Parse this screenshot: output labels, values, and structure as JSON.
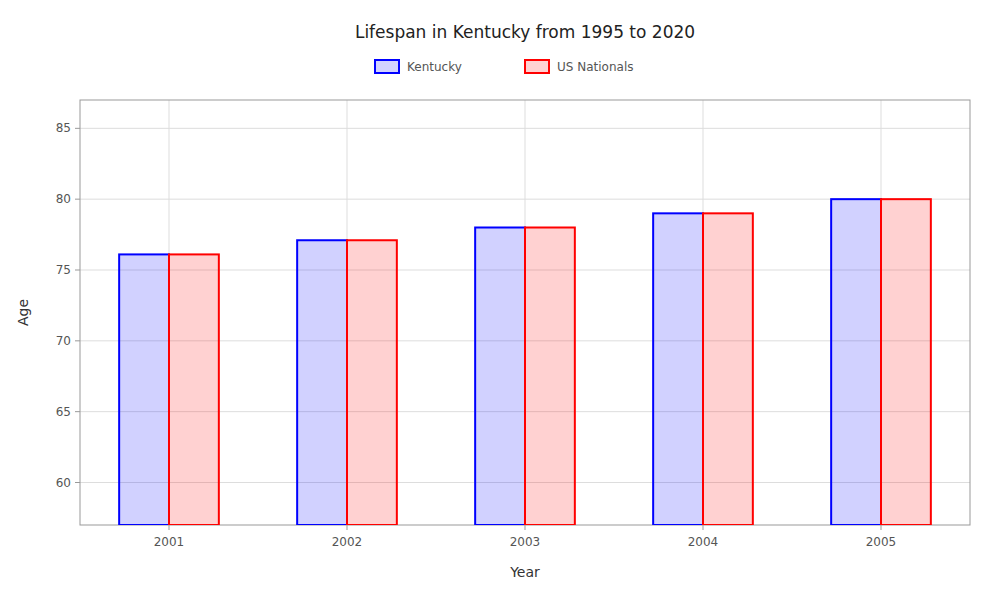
{
  "chart_data": {
    "type": "bar",
    "title": "Lifespan in Kentucky from 1995 to 2020",
    "x_label": "Year",
    "y_label": "Age",
    "categories": [
      "2001",
      "2002",
      "2003",
      "2004",
      "2005"
    ],
    "series": [
      {
        "name": "Kentucky",
        "color": "#0000ff",
        "values": [
          76.1,
          77.1,
          78.0,
          79.0,
          80.0
        ]
      },
      {
        "name": "US Nationals",
        "color": "#ff0000",
        "values": [
          76.1,
          77.1,
          78.0,
          79.0,
          80.0
        ]
      }
    ],
    "ylim": [
      57,
      87
    ],
    "yticks": [
      60,
      65,
      70,
      75,
      80,
      85
    ],
    "grid": true,
    "legend": "top"
  }
}
